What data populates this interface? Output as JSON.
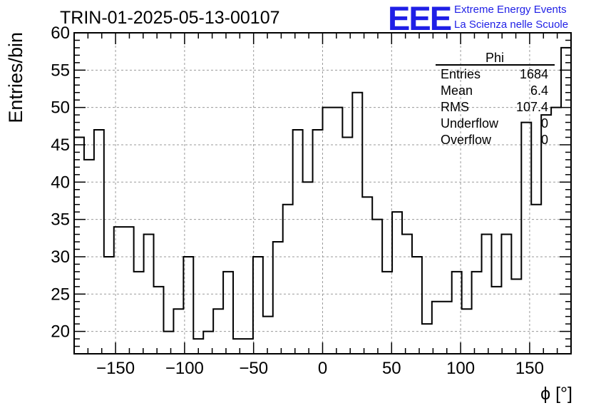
{
  "header": {
    "run_title": "TRIN-01-2025-05-13-00107",
    "logo_text": "EEE",
    "logo_line1": "Extreme Energy Events",
    "logo_line2": "La Scienza nelle Scuole",
    "logo_color": "#1f1fe6"
  },
  "stats_box": {
    "title": "Phi",
    "rows": [
      {
        "label": "Entries",
        "value": "1684"
      },
      {
        "label": "Mean",
        "value": "6.4"
      },
      {
        "label": "RMS",
        "value": "107.4"
      },
      {
        "label": "Underflow",
        "value": "0"
      },
      {
        "label": "Overflow",
        "value": "0"
      }
    ]
  },
  "chart_data": {
    "type": "bar",
    "style": "step-histogram",
    "title": "",
    "xlabel": "ϕ [°]",
    "ylabel": "Entries/bin",
    "xlim": [
      -180,
      180
    ],
    "ylim": [
      17,
      60
    ],
    "bin_width": 7.2,
    "x_ticks": [
      -150,
      -100,
      -50,
      0,
      50,
      100,
      150
    ],
    "x_tick_labels": [
      "−150",
      "−100",
      "−50",
      "0",
      "50",
      "100",
      "150"
    ],
    "y_ticks": [
      20,
      25,
      30,
      35,
      40,
      45,
      50,
      55,
      60
    ],
    "y_tick_labels": [
      "20",
      "25",
      "30",
      "35",
      "40",
      "45",
      "50",
      "55",
      "60"
    ],
    "grid": true,
    "line_color": "#000000",
    "values": [
      46,
      43,
      47,
      30,
      34,
      34,
      28,
      33,
      26,
      20,
      23,
      30,
      19,
      20,
      23,
      28,
      19,
      19,
      30,
      22,
      32,
      37,
      47,
      40,
      47,
      50,
      50,
      46,
      52,
      38,
      35,
      28,
      36,
      33,
      30,
      21,
      24,
      24,
      28,
      23,
      28,
      33,
      26,
      33,
      27,
      48,
      37,
      49,
      50,
      58
    ]
  }
}
